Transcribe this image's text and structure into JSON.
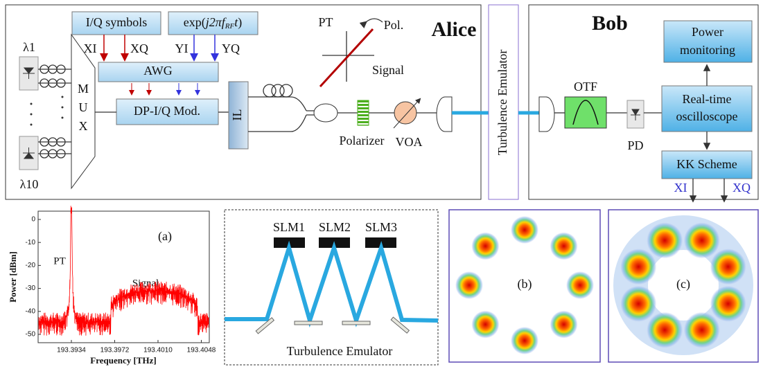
{
  "alice": {
    "title": "Alice",
    "iq_symbols": "I/Q symbols",
    "rf_tone": [
      "exp(",
      "j2π",
      "f",
      "RF",
      "t",
      ")"
    ],
    "inputs": [
      "XI",
      "XQ",
      "YI",
      "YQ"
    ],
    "awg": "AWG",
    "modulator": "DP-I/Q Mod.",
    "mux": [
      "M",
      "U",
      "X"
    ],
    "lasers": [
      "λ1",
      "λ10"
    ],
    "interleaver": "IL",
    "polar_axes": {
      "pt": "PT",
      "pol": "Pol.",
      "signal": "Signal"
    },
    "polarizer": "Polarizer",
    "voa": "VOA"
  },
  "channel": {
    "label": "Turbulence Emulator"
  },
  "bob": {
    "title": "Bob",
    "power_monitoring": [
      "Power",
      "monitoring"
    ],
    "otf": "OTF",
    "pd": "PD",
    "oscilloscope": [
      "Real-time",
      "oscilloscope"
    ],
    "kk": "KK Scheme",
    "outputs": [
      "XI",
      "XQ"
    ]
  },
  "spectrum": {
    "label": "(a)",
    "y_label": "Power [dBm]",
    "x_label": "Frequency [THz]",
    "y_ticks": [
      "0",
      "-10",
      "-20",
      "-30",
      "-40",
      "-50"
    ],
    "x_ticks": [
      "193.3934",
      "193.3972",
      "193.4010",
      "193.4048"
    ],
    "pt": "PT",
    "signal": "Signal"
  },
  "emulator": {
    "slms": [
      "SLM1",
      "SLM2",
      "SLM3"
    ],
    "caption": "Turbulence Emulator"
  },
  "constellations": [
    "(b)",
    "(c)"
  ]
}
